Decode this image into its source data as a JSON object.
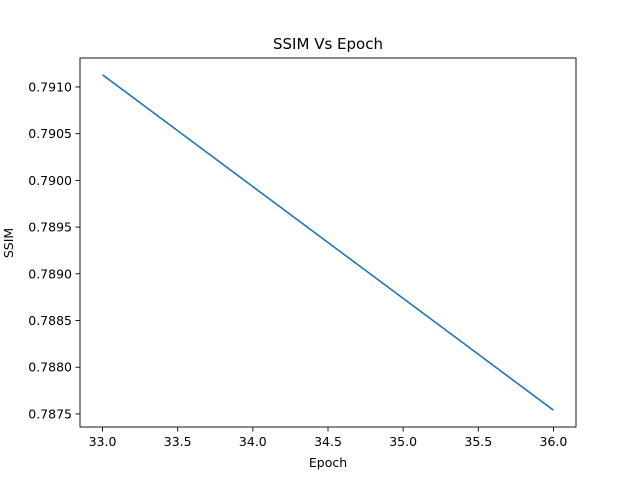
{
  "chart_data": {
    "type": "line",
    "title": "SSIM Vs Epoch",
    "xlabel": "Epoch",
    "ylabel": "SSIM",
    "xlim": [
      32.85,
      36.15
    ],
    "ylim": [
      0.78736,
      0.79131
    ],
    "x_ticks": [
      33.0,
      33.5,
      34.0,
      34.5,
      35.0,
      35.5,
      36.0
    ],
    "x_tick_labels": [
      "33.0",
      "33.5",
      "34.0",
      "34.5",
      "35.0",
      "35.5",
      "36.0"
    ],
    "y_ticks": [
      0.7875,
      0.788,
      0.7885,
      0.789,
      0.7895,
      0.79,
      0.7905,
      0.791
    ],
    "y_tick_labels": [
      "0.7875",
      "0.7880",
      "0.7885",
      "0.7890",
      "0.7895",
      "0.7900",
      "0.7905",
      "0.7910"
    ],
    "grid": false,
    "series": [
      {
        "color": "#1f77b4",
        "x": [
          33,
          36
        ],
        "y": [
          0.79113,
          0.78754
        ]
      }
    ]
  }
}
